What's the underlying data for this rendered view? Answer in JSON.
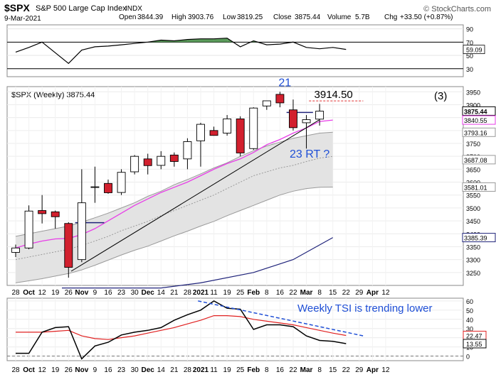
{
  "header": {
    "symbol": "$SPX",
    "name": "S&P 500 Large Cap Index",
    "exchange": "INDX",
    "brand": "© StockCharts.com",
    "date": "9-Mar-2021",
    "quote": {
      "open_label": "Open",
      "open": "3844.39",
      "high_label": "High",
      "high": "3903.76",
      "low_label": "Low",
      "low": "3819.25",
      "close_label": "Close",
      "close": "3875.44",
      "volume_label": "Volume",
      "volume": "5.7B",
      "chg_label": "Chg",
      "chg": "+33.50 (+0.87%)"
    }
  },
  "colors": {
    "up_body": "#ffffff",
    "down_body": "#d2202e",
    "candle_outline": "#000000",
    "band_fill": "#e3e3e3",
    "band_edge": "#9a9a9a",
    "ma_short": "#e83ee8",
    "ma_long": "#1f237a",
    "trendline": "#000000",
    "annotation_blue": "#1f4fd6",
    "tsi_line": "#000000",
    "tsi_signal": "#e02020",
    "rsi_fill": "#3e8a3e",
    "target_line": "#e03030"
  },
  "chart_data": [
    {
      "type": "line",
      "panel": "indicator-top",
      "y_ticks": [
        90,
        70,
        50,
        30
      ],
      "ylim": [
        18,
        96
      ],
      "latest_value": "59.09",
      "reference_levels": [
        70,
        30
      ],
      "values": [
        55,
        62,
        70,
        54,
        38,
        58,
        63,
        64,
        66,
        68,
        70,
        73,
        72,
        74,
        75,
        75,
        76,
        63,
        72,
        66,
        67,
        70,
        62,
        60,
        62,
        59
      ]
    },
    {
      "type": "candlestick",
      "panel": "price",
      "title": "$SPX (Weekly) 3875.44",
      "x_labels": [
        "28",
        "Oct",
        "12",
        "19",
        "26",
        "Nov",
        "9",
        "16",
        "23",
        "30",
        "Dec",
        "14",
        "21",
        "28",
        "2021",
        "11",
        "19",
        "25",
        "Feb",
        "8",
        "16",
        "22",
        "Mar",
        "8",
        "15",
        "22",
        "29",
        "Apr",
        "12"
      ],
      "y_ticks": [
        3950,
        3900,
        3850,
        3800,
        3750,
        3700,
        3650,
        3600,
        3550,
        3500,
        3450,
        3400,
        3350,
        3300,
        3250
      ],
      "ylim": [
        3200,
        3970
      ],
      "price_tags": [
        {
          "value": 3875.44,
          "label": "3875.44",
          "color": "#000000"
        },
        {
          "value": 3840.55,
          "label": "3840.55",
          "color": "#e83ee8"
        },
        {
          "value": 3793.16,
          "label": "3793.16",
          "color": "#9a9a9a"
        },
        {
          "value": 3687.08,
          "label": "3687.08",
          "color": "#9a9a9a"
        },
        {
          "value": 3581.01,
          "label": "3581.01",
          "color": "#9a9a9a"
        },
        {
          "value": 3385.39,
          "label": "3385.39",
          "color": "#1f237a"
        }
      ],
      "candles": [
        {
          "x": 0,
          "o": 3328,
          "h": 3358,
          "l": 3310,
          "c": 3345
        },
        {
          "x": 1,
          "o": 3345,
          "h": 3510,
          "l": 3340,
          "c": 3488
        },
        {
          "x": 2,
          "o": 3490,
          "h": 3550,
          "l": 3440,
          "c": 3478
        },
        {
          "x": 3,
          "o": 3485,
          "h": 3490,
          "l": 3420,
          "c": 3466
        },
        {
          "x": 4,
          "o": 3440,
          "h": 3445,
          "l": 3230,
          "c": 3270
        },
        {
          "x": 5,
          "o": 3300,
          "h": 3650,
          "l": 3290,
          "c": 3520
        },
        {
          "x": 6,
          "o": 3580,
          "h": 3660,
          "l": 3520,
          "c": 3582
        },
        {
          "x": 7,
          "o": 3595,
          "h": 3610,
          "l": 3555,
          "c": 3559
        },
        {
          "x": 8,
          "o": 3560,
          "h": 3650,
          "l": 3550,
          "c": 3638
        },
        {
          "x": 9,
          "o": 3640,
          "h": 3705,
          "l": 3630,
          "c": 3700
        },
        {
          "x": 10,
          "o": 3690,
          "h": 3710,
          "l": 3630,
          "c": 3664
        },
        {
          "x": 11,
          "o": 3665,
          "h": 3720,
          "l": 3650,
          "c": 3700
        },
        {
          "x": 12,
          "o": 3705,
          "h": 3715,
          "l": 3660,
          "c": 3680
        },
        {
          "x": 13,
          "o": 3690,
          "h": 3770,
          "l": 3650,
          "c": 3757
        },
        {
          "x": 14,
          "o": 3760,
          "h": 3830,
          "l": 3660,
          "c": 3824
        },
        {
          "x": 15,
          "o": 3800,
          "h": 3815,
          "l": 3780,
          "c": 3781
        },
        {
          "x": 16,
          "o": 3790,
          "h": 3860,
          "l": 3780,
          "c": 3845
        },
        {
          "x": 17,
          "o": 3845,
          "h": 3855,
          "l": 3700,
          "c": 3713
        },
        {
          "x": 18,
          "o": 3730,
          "h": 3890,
          "l": 3725,
          "c": 3887
        },
        {
          "x": 19,
          "o": 3895,
          "h": 3915,
          "l": 3880,
          "c": 3915
        },
        {
          "x": 20,
          "o": 3940,
          "h": 3950,
          "l": 3890,
          "c": 3907
        },
        {
          "x": 21,
          "o": 3880,
          "h": 3920,
          "l": 3800,
          "c": 3811
        },
        {
          "x": 22,
          "o": 3830,
          "h": 3860,
          "l": 3730,
          "c": 3842
        },
        {
          "x": 23,
          "o": 3844,
          "h": 3903,
          "l": 3819,
          "c": 3875
        }
      ],
      "series": [
        {
          "values": [
            3345,
            3360,
            3372,
            3380,
            3382,
            3397,
            3420,
            3450,
            3480,
            3510,
            3535,
            3560,
            3580,
            3600,
            3625,
            3650,
            3672,
            3690,
            3715,
            3745,
            3765,
            3790,
            3810,
            3835,
            3840.55
          ]
        },
        {
          "values": [
            3300,
            3310,
            3320,
            3330,
            3340,
            3355,
            3372,
            3390,
            3412,
            3430,
            3448,
            3470,
            3490,
            3510,
            3530,
            3550,
            3575,
            3600,
            3625,
            3640,
            3655,
            3665,
            3680,
            3693,
            3700
          ]
        },
        {
          "values": [
            3390,
            3400,
            3410,
            3420,
            3430,
            3445,
            3462,
            3480,
            3500,
            3520,
            3545,
            3565,
            3590,
            3610,
            3632,
            3655,
            3675,
            3700,
            3722,
            3740,
            3755,
            3770,
            3780,
            3790,
            3793.16
          ]
        },
        {
          "values": [
            3210,
            3218,
            3226,
            3236,
            3246,
            3260,
            3278,
            3298,
            3318,
            3336,
            3352,
            3372,
            3392,
            3410,
            3430,
            3448,
            3470,
            3490,
            3510,
            3530,
            3550,
            3565,
            3575,
            3580,
            3581.01
          ]
        }
      ],
      "long_ma": [
        {
          "x": 3.5,
          "y": 3190
        },
        {
          "x": 11,
          "y": 3190
        },
        {
          "x": 14,
          "y": 3210
        },
        {
          "x": 18,
          "y": 3250
        },
        {
          "x": 21,
          "y": 3300
        },
        {
          "x": 24,
          "y": 3385.39
        }
      ],
      "trendline": [
        {
          "x": 4.2,
          "y": 3255
        },
        {
          "x": 23,
          "y": 3842
        }
      ],
      "blue_levels": [
        {
          "x1": 4.5,
          "x2": 6.7,
          "y": 3443
        },
        {
          "x1": 20.5,
          "x2": 22.5,
          "y": 3870
        }
      ],
      "target_line": {
        "value": 3914.5,
        "x1": 22.2,
        "x2": 26.3
      },
      "annotations": {
        "wave21": "21",
        "target": "3914.50",
        "wave3": "(3)",
        "rt": "23 RT ?"
      }
    },
    {
      "type": "line",
      "panel": "indicator-tsi",
      "y_ticks": [
        60,
        50,
        40,
        30,
        20,
        10,
        0
      ],
      "ylim": [
        -5,
        63
      ],
      "latest": [
        {
          "label": "22.47",
          "color": "#e02020"
        },
        {
          "label": "13.55",
          "color": "#000000"
        }
      ],
      "annotation": "Weekly TSI is trending lower",
      "series": [
        {
          "values": [
            3,
            3,
            26,
            31,
            32,
            -3,
            11,
            15,
            23,
            26,
            28,
            31,
            39,
            45,
            50,
            60,
            52,
            51,
            29,
            34,
            34,
            32,
            22,
            17,
            16,
            13.55
          ]
        },
        {
          "values": [
            26,
            26,
            26,
            27,
            28,
            22,
            19,
            18,
            20,
            22,
            25,
            28,
            31,
            35,
            39,
            44,
            44,
            43,
            40,
            38,
            36,
            34,
            31,
            28,
            25,
            22.47
          ]
        }
      ],
      "trend_arrow": [
        {
          "x": 13.8,
          "y": 60
        },
        {
          "x": 26.3,
          "y": 22
        }
      ]
    }
  ]
}
